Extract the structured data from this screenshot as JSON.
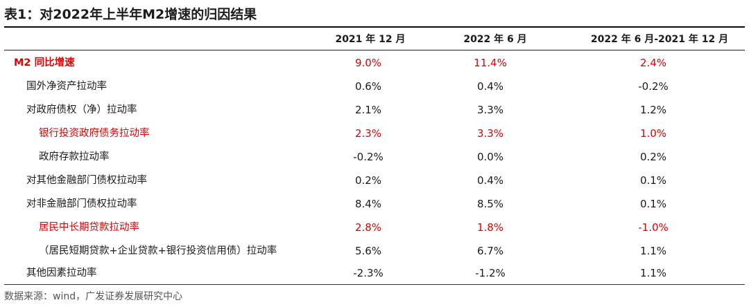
{
  "title": "表1：对2022年上半年M2增速的归因结果",
  "columns": [
    "2021 年 12 月",
    "2022 年 6 月",
    "2022 年 6 月-2021 年 12 月"
  ],
  "rows": [
    {
      "label": "M2 同比增速",
      "values": [
        "9.0%",
        "11.4%",
        "2.4%"
      ]
    },
    {
      "label": "国外净资产拉动率",
      "values": [
        "0.6%",
        "0.4%",
        "-0.2%"
      ]
    },
    {
      "label": "对政府债权（净）拉动率",
      "values": [
        "2.1%",
        "3.3%",
        "1.2%"
      ]
    },
    {
      "label": "银行投资政府债务拉动率",
      "values": [
        "2.3%",
        "3.3%",
        "1.0%"
      ]
    },
    {
      "label": "政府存款拉动率",
      "values": [
        "-0.2%",
        "0.0%",
        "0.2%"
      ]
    },
    {
      "label": "对其他金融部门债权拉动率",
      "values": [
        "0.2%",
        "0.4%",
        "0.1%"
      ]
    },
    {
      "label": "对非金融部门债权拉动率",
      "values": [
        "8.4%",
        "8.5%",
        "0.1%"
      ]
    },
    {
      "label": "居民中长期贷款拉动率",
      "values": [
        "2.8%",
        "1.8%",
        "-1.0%"
      ]
    },
    {
      "label": "（居民短期贷款+企业贷款+银行投资信用债）拉动率",
      "values": [
        "5.6%",
        "6.7%",
        "1.1%"
      ]
    },
    {
      "label": "其他因素拉动率",
      "values": [
        "-2.3%",
        "-1.2%",
        "1.1%"
      ]
    }
  ],
  "source": "数据来源：wind，广发证券发展研究中心",
  "colors": {
    "highlight": "#e00000",
    "text": "#1a1a1a"
  }
}
